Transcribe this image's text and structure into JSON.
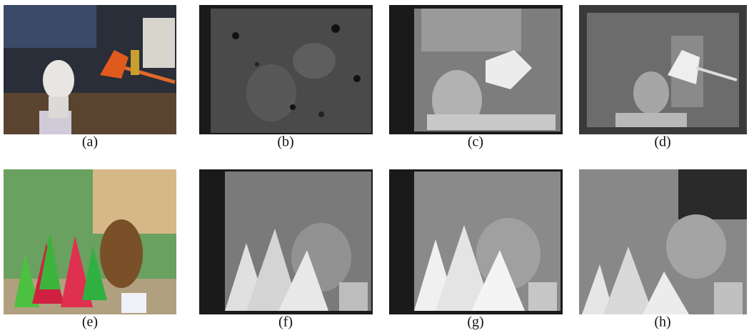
{
  "panels": [
    {
      "caption": "(a)"
    },
    {
      "caption": "(b)"
    },
    {
      "caption": "(c)"
    },
    {
      "caption": "(d)"
    },
    {
      "caption": "(e)"
    },
    {
      "caption": "(f)"
    },
    {
      "caption": "(g)"
    },
    {
      "caption": "(h)"
    }
  ]
}
